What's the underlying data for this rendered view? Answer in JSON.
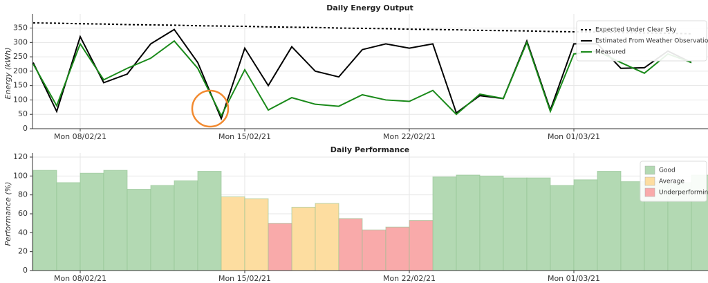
{
  "chart_data": [
    {
      "type": "line",
      "title": "Daily Energy Output",
      "ylabel": "Energy (kWh)",
      "x": [
        "2021-02-06",
        "2021-02-07",
        "2021-02-08",
        "2021-02-09",
        "2021-02-10",
        "2021-02-11",
        "2021-02-12",
        "2021-02-13",
        "2021-02-14",
        "2021-02-15",
        "2021-02-16",
        "2021-02-17",
        "2021-02-18",
        "2021-02-19",
        "2021-02-20",
        "2021-02-21",
        "2021-02-22",
        "2021-02-23",
        "2021-02-24",
        "2021-02-25",
        "2021-02-26",
        "2021-02-27",
        "2021-02-28",
        "2021-03-01",
        "2021-03-02",
        "2021-03-03",
        "2021-03-04",
        "2021-03-05",
        "2021-03-06"
      ],
      "series": [
        {
          "name": "Expected Under Clear Sky",
          "color": "#000000",
          "line_style": "dotted",
          "values": [
            368,
            367,
            365,
            364,
            362,
            361,
            360,
            358,
            357,
            356,
            354,
            353,
            352,
            350,
            349,
            348,
            346,
            345,
            344,
            342,
            341,
            340,
            338,
            337,
            336,
            334,
            333,
            332,
            330
          ]
        },
        {
          "name": "Estimated From Weather Observations",
          "color": "#000000",
          "line_style": "solid",
          "values": [
            230,
            60,
            320,
            160,
            190,
            295,
            345,
            230,
            35,
            280,
            150,
            285,
            200,
            180,
            275,
            295,
            280,
            295,
            55,
            115,
            105,
            305,
            65,
            295,
            295,
            210,
            212,
            270,
            230
          ]
        },
        {
          "name": "Measured",
          "color": "#1a8a1a",
          "line_style": "solid",
          "values": [
            225,
            80,
            295,
            170,
            210,
            245,
            305,
            210,
            45,
            205,
            65,
            108,
            85,
            78,
            118,
            100,
            95,
            133,
            50,
            120,
            105,
            300,
            60,
            260,
            270,
            230,
            193,
            260,
            230
          ]
        }
      ],
      "ylim": [
        0,
        385
      ],
      "yticks": [
        0,
        50,
        100,
        150,
        200,
        250,
        300,
        350
      ],
      "xticks": [
        {
          "value": "2021-02-08",
          "label": "Mon 08/02/21"
        },
        {
          "value": "2021-02-15",
          "label": "Mon 15/02/21"
        },
        {
          "value": "2021-02-22",
          "label": "Mon 22/02/21"
        },
        {
          "value": "2021-03-01",
          "label": "Mon 01/03/21"
        }
      ],
      "grid": true,
      "legend": "upper right"
    },
    {
      "type": "bar",
      "title": "Daily Performance",
      "ylabel": "Performance (%)",
      "x": [
        "2021-02-06",
        "2021-02-07",
        "2021-02-08",
        "2021-02-09",
        "2021-02-10",
        "2021-02-11",
        "2021-02-12",
        "2021-02-13",
        "2021-02-14",
        "2021-02-15",
        "2021-02-16",
        "2021-02-17",
        "2021-02-18",
        "2021-02-19",
        "2021-02-20",
        "2021-02-21",
        "2021-02-22",
        "2021-02-23",
        "2021-02-24",
        "2021-02-25",
        "2021-02-26",
        "2021-02-27",
        "2021-02-28",
        "2021-03-01",
        "2021-03-02",
        "2021-03-03",
        "2021-03-04",
        "2021-03-05",
        "2021-03-06"
      ],
      "series": [
        {
          "name": "Good",
          "color": "#b3d9b3",
          "values": [
            106,
            93,
            103,
            106,
            86,
            90,
            95,
            105,
            null,
            null,
            null,
            null,
            null,
            null,
            null,
            null,
            null,
            99,
            101,
            100,
            98,
            98,
            90,
            96,
            105,
            94,
            95,
            93,
            101
          ]
        },
        {
          "name": "Average",
          "color": "#fddda0",
          "values": [
            null,
            null,
            null,
            null,
            null,
            null,
            null,
            null,
            78,
            76,
            null,
            67,
            71,
            null,
            null,
            null,
            null,
            null,
            null,
            null,
            null,
            null,
            null,
            null,
            null,
            null,
            null,
            null,
            null
          ]
        },
        {
          "name": "Underperforming",
          "color": "#f9aaaa",
          "values": [
            null,
            null,
            null,
            null,
            null,
            null,
            null,
            null,
            null,
            null,
            50,
            null,
            null,
            55,
            43,
            46,
            53,
            null,
            null,
            null,
            null,
            null,
            null,
            null,
            null,
            null,
            null,
            null,
            null
          ]
        }
      ],
      "ylim": [
        0,
        120
      ],
      "yticks": [
        0,
        20,
        40,
        60,
        80,
        100,
        120
      ],
      "xticks": [
        {
          "value": "2021-02-08",
          "label": "Mon 08/02/21"
        },
        {
          "value": "2021-02-15",
          "label": "Mon 15/02/21"
        },
        {
          "value": "2021-02-22",
          "label": "Mon 22/02/21"
        },
        {
          "value": "2021-03-01",
          "label": "Mon 01/03/21"
        }
      ],
      "grid": true,
      "legend": "upper right"
    }
  ]
}
